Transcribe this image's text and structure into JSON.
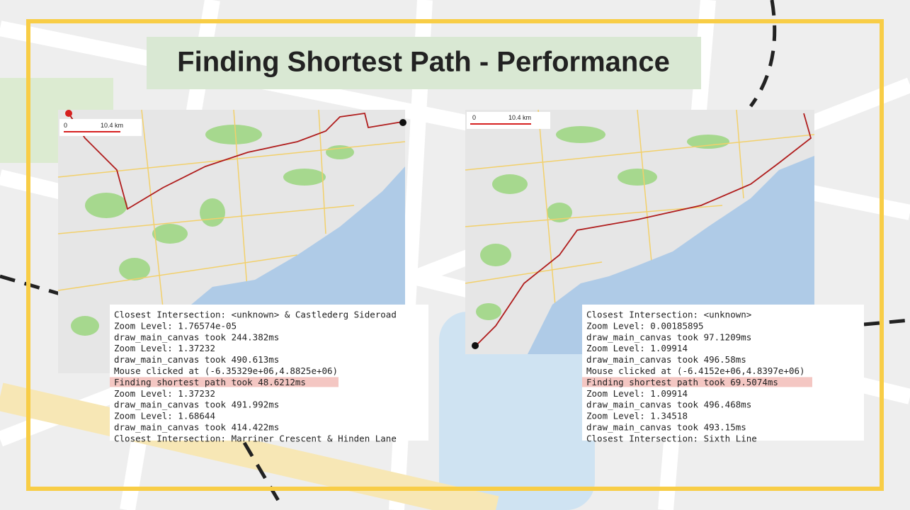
{
  "title": "Finding Shortest Path - Performance",
  "panels": [
    {
      "scale": {
        "start": "0",
        "end": "10.4 km"
      },
      "highlighted_line": 6,
      "log": [
        "Closest Intersection: <unknown> & Castlederg Sideroad",
        "Zoom Level: 1.76574e-05",
        "draw_main_canvas took 244.382ms",
        "Zoom Level: 1.37232",
        "draw_main_canvas took 490.613ms",
        "Mouse clicked at (-6.35329e+06,4.8825e+06)",
        "Finding shortest path took 48.6212ms",
        "Zoom Level: 1.37232",
        "draw_main_canvas took 491.992ms",
        "Zoom Level: 1.68644",
        "draw_main_canvas took 414.422ms",
        "Closest Intersection: Marriner Crescent & Hinden Lane"
      ]
    },
    {
      "scale": {
        "start": "0",
        "end": "10.4 km"
      },
      "highlighted_line": 6,
      "log": [
        "Closest Intersection: <unknown>",
        "Zoom Level: 0.00185895",
        "draw_main_canvas took 97.1209ms",
        "Zoom Level: 1.09914",
        "draw_main_canvas took 496.58ms",
        "Mouse clicked at (-6.4152e+06,4.8397e+06)",
        "Finding shortest path took 69.5074ms",
        "Zoom Level: 1.09914",
        "draw_main_canvas took 496.468ms",
        "Zoom Level: 1.34518",
        "draw_main_canvas took 493.15ms",
        "Closest Intersection: Sixth Line"
      ]
    }
  ]
}
